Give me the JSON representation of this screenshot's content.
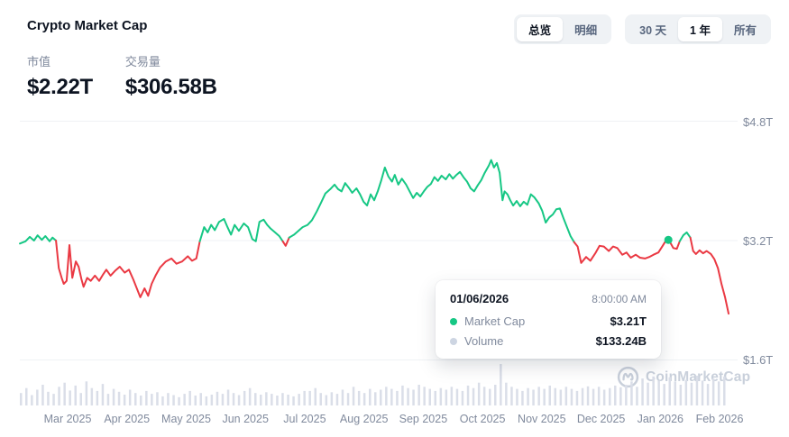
{
  "header": {
    "title": "Crypto Market Cap",
    "stats": [
      {
        "label": "市值",
        "value": "$2.22T"
      },
      {
        "label": "交易量",
        "value": "$306.58B"
      }
    ]
  },
  "toolbar": {
    "view_toggle": [
      {
        "label": "总览",
        "active": true
      },
      {
        "label": "明细",
        "active": false
      }
    ],
    "range_toggle": [
      {
        "label": "30 天",
        "active": false
      },
      {
        "label": "1 年",
        "active": true
      },
      {
        "label": "所有",
        "active": false
      }
    ]
  },
  "tooltip": {
    "date": "01/06/2026",
    "time": "8:00:00 AM",
    "rows": [
      {
        "label": "Market Cap",
        "value": "$3.21T",
        "dot_color": "#16c784"
      },
      {
        "label": "Volume",
        "value": "$133.24B",
        "dot_color": "#cdd5e2"
      }
    ]
  },
  "watermark": {
    "text": "CoinMarketCap"
  },
  "chart_data": {
    "type": "line",
    "series_name": "Market Cap (trillions USD)",
    "baseline": 3.16,
    "colors": {
      "up": "#16c784",
      "down": "#ea3943",
      "volume": "#dadee8",
      "grid": "#eff2f5"
    },
    "y_axis": {
      "ticks": [
        "$4.8T",
        "$3.2T",
        "$1.6T"
      ],
      "values": [
        4.8,
        3.2,
        1.6
      ]
    },
    "x_axis": {
      "labels": [
        "Mar 2025",
        "Apr 2025",
        "May 2025",
        "Jun 2025",
        "Jul 2025",
        "Aug 2025",
        "Sep 2025",
        "Oct 2025",
        "Nov 2025",
        "Dec 2025",
        "Jan 2026",
        "Feb 2026"
      ]
    },
    "hover_point": {
      "index": 170,
      "value_label": "$3.21T"
    },
    "points": [
      [
        0.0,
        3.16
      ],
      [
        0.008,
        3.19
      ],
      [
        0.014,
        3.25
      ],
      [
        0.02,
        3.2
      ],
      [
        0.025,
        3.27
      ],
      [
        0.031,
        3.21
      ],
      [
        0.036,
        3.26
      ],
      [
        0.042,
        3.19
      ],
      [
        0.046,
        3.24
      ],
      [
        0.051,
        3.2
      ],
      [
        0.055,
        2.83
      ],
      [
        0.059,
        2.7
      ],
      [
        0.062,
        2.62
      ],
      [
        0.066,
        2.66
      ],
      [
        0.07,
        3.14
      ],
      [
        0.074,
        2.7
      ],
      [
        0.079,
        2.92
      ],
      [
        0.083,
        2.85
      ],
      [
        0.087,
        2.68
      ],
      [
        0.09,
        2.58
      ],
      [
        0.095,
        2.7
      ],
      [
        0.1,
        2.66
      ],
      [
        0.106,
        2.73
      ],
      [
        0.112,
        2.66
      ],
      [
        0.117,
        2.74
      ],
      [
        0.122,
        2.81
      ],
      [
        0.128,
        2.73
      ],
      [
        0.135,
        2.8
      ],
      [
        0.141,
        2.85
      ],
      [
        0.148,
        2.77
      ],
      [
        0.154,
        2.81
      ],
      [
        0.16,
        2.68
      ],
      [
        0.165,
        2.56
      ],
      [
        0.17,
        2.44
      ],
      [
        0.176,
        2.56
      ],
      [
        0.181,
        2.46
      ],
      [
        0.186,
        2.62
      ],
      [
        0.192,
        2.74
      ],
      [
        0.198,
        2.84
      ],
      [
        0.206,
        2.92
      ],
      [
        0.214,
        2.96
      ],
      [
        0.221,
        2.89
      ],
      [
        0.229,
        2.92
      ],
      [
        0.237,
        2.99
      ],
      [
        0.243,
        2.93
      ],
      [
        0.249,
        2.96
      ],
      [
        0.254,
        3.19
      ],
      [
        0.26,
        3.38
      ],
      [
        0.265,
        3.31
      ],
      [
        0.27,
        3.41
      ],
      [
        0.275,
        3.34
      ],
      [
        0.281,
        3.45
      ],
      [
        0.288,
        3.49
      ],
      [
        0.293,
        3.38
      ],
      [
        0.298,
        3.28
      ],
      [
        0.303,
        3.41
      ],
      [
        0.309,
        3.33
      ],
      [
        0.316,
        3.43
      ],
      [
        0.322,
        3.38
      ],
      [
        0.328,
        3.22
      ],
      [
        0.333,
        3.19
      ],
      [
        0.338,
        3.45
      ],
      [
        0.344,
        3.48
      ],
      [
        0.349,
        3.41
      ],
      [
        0.354,
        3.36
      ],
      [
        0.36,
        3.31
      ],
      [
        0.366,
        3.26
      ],
      [
        0.371,
        3.19
      ],
      [
        0.375,
        3.13
      ],
      [
        0.38,
        3.24
      ],
      [
        0.387,
        3.28
      ],
      [
        0.393,
        3.33
      ],
      [
        0.399,
        3.38
      ],
      [
        0.406,
        3.41
      ],
      [
        0.412,
        3.47
      ],
      [
        0.419,
        3.59
      ],
      [
        0.425,
        3.71
      ],
      [
        0.431,
        3.83
      ],
      [
        0.438,
        3.89
      ],
      [
        0.444,
        3.95
      ],
      [
        0.449,
        3.89
      ],
      [
        0.454,
        3.86
      ],
      [
        0.459,
        3.97
      ],
      [
        0.464,
        3.91
      ],
      [
        0.469,
        3.84
      ],
      [
        0.475,
        3.9
      ],
      [
        0.48,
        3.82
      ],
      [
        0.485,
        3.72
      ],
      [
        0.49,
        3.67
      ],
      [
        0.495,
        3.82
      ],
      [
        0.5,
        3.74
      ],
      [
        0.505,
        3.86
      ],
      [
        0.51,
        4.01
      ],
      [
        0.515,
        4.18
      ],
      [
        0.52,
        4.06
      ],
      [
        0.525,
        3.99
      ],
      [
        0.529,
        4.08
      ],
      [
        0.534,
        3.95
      ],
      [
        0.539,
        4.03
      ],
      [
        0.545,
        3.95
      ],
      [
        0.55,
        3.86
      ],
      [
        0.555,
        3.77
      ],
      [
        0.56,
        3.84
      ],
      [
        0.565,
        3.79
      ],
      [
        0.57,
        3.86
      ],
      [
        0.575,
        3.92
      ],
      [
        0.58,
        3.96
      ],
      [
        0.585,
        4.05
      ],
      [
        0.59,
        4.0
      ],
      [
        0.595,
        4.07
      ],
      [
        0.601,
        4.02
      ],
      [
        0.606,
        4.09
      ],
      [
        0.611,
        4.03
      ],
      [
        0.616,
        4.08
      ],
      [
        0.621,
        4.12
      ],
      [
        0.626,
        4.05
      ],
      [
        0.631,
        3.99
      ],
      [
        0.636,
        3.9
      ],
      [
        0.641,
        3.86
      ],
      [
        0.646,
        3.94
      ],
      [
        0.651,
        4.01
      ],
      [
        0.656,
        4.11
      ],
      [
        0.662,
        4.21
      ],
      [
        0.665,
        4.28
      ],
      [
        0.669,
        4.18
      ],
      [
        0.673,
        4.24
      ],
      [
        0.677,
        4.11
      ],
      [
        0.681,
        3.74
      ],
      [
        0.684,
        3.86
      ],
      [
        0.688,
        3.82
      ],
      [
        0.692,
        3.74
      ],
      [
        0.696,
        3.67
      ],
      [
        0.701,
        3.73
      ],
      [
        0.706,
        3.66
      ],
      [
        0.711,
        3.72
      ],
      [
        0.716,
        3.68
      ],
      [
        0.721,
        3.82
      ],
      [
        0.726,
        3.78
      ],
      [
        0.732,
        3.7
      ],
      [
        0.737,
        3.6
      ],
      [
        0.742,
        3.44
      ],
      [
        0.747,
        3.51
      ],
      [
        0.752,
        3.55
      ],
      [
        0.757,
        3.62
      ],
      [
        0.762,
        3.63
      ],
      [
        0.767,
        3.5
      ],
      [
        0.772,
        3.38
      ],
      [
        0.777,
        3.26
      ],
      [
        0.782,
        3.18
      ],
      [
        0.787,
        3.12
      ],
      [
        0.792,
        2.9
      ],
      [
        0.799,
        2.98
      ],
      [
        0.805,
        2.93
      ],
      [
        0.812,
        3.03
      ],
      [
        0.818,
        3.13
      ],
      [
        0.824,
        3.12
      ],
      [
        0.831,
        3.06
      ],
      [
        0.837,
        3.12
      ],
      [
        0.843,
        3.1
      ],
      [
        0.85,
        3.01
      ],
      [
        0.856,
        3.04
      ],
      [
        0.862,
        2.97
      ],
      [
        0.869,
        3.01
      ],
      [
        0.875,
        2.97
      ],
      [
        0.882,
        2.96
      ],
      [
        0.888,
        2.98
      ],
      [
        0.894,
        3.01
      ],
      [
        0.901,
        3.04
      ],
      [
        0.907,
        3.13
      ],
      [
        0.911,
        3.19
      ],
      [
        0.915,
        3.21
      ],
      [
        0.918,
        3.17
      ],
      [
        0.922,
        3.1
      ],
      [
        0.927,
        3.09
      ],
      [
        0.931,
        3.19
      ],
      [
        0.936,
        3.27
      ],
      [
        0.941,
        3.31
      ],
      [
        0.946,
        3.24
      ],
      [
        0.95,
        3.06
      ],
      [
        0.954,
        3.02
      ],
      [
        0.959,
        3.07
      ],
      [
        0.964,
        3.03
      ],
      [
        0.969,
        3.06
      ],
      [
        0.975,
        3.02
      ],
      [
        0.98,
        2.95
      ],
      [
        0.985,
        2.83
      ],
      [
        0.99,
        2.62
      ],
      [
        0.995,
        2.44
      ],
      [
        1.0,
        2.22
      ]
    ],
    "volume_relative": [
      0.3,
      0.42,
      0.25,
      0.38,
      0.5,
      0.33,
      0.28,
      0.45,
      0.55,
      0.36,
      0.48,
      0.3,
      0.58,
      0.42,
      0.35,
      0.52,
      0.28,
      0.4,
      0.33,
      0.26,
      0.38,
      0.3,
      0.24,
      0.35,
      0.28,
      0.32,
      0.22,
      0.3,
      0.25,
      0.2,
      0.28,
      0.35,
      0.24,
      0.3,
      0.22,
      0.26,
      0.33,
      0.28,
      0.38,
      0.3,
      0.25,
      0.35,
      0.42,
      0.3,
      0.26,
      0.32,
      0.28,
      0.24,
      0.3,
      0.26,
      0.22,
      0.28,
      0.35,
      0.35,
      0.42,
      0.3,
      0.25,
      0.32,
      0.28,
      0.38,
      0.3,
      0.45,
      0.35,
      0.3,
      0.4,
      0.32,
      0.38,
      0.45,
      0.4,
      0.35,
      0.48,
      0.42,
      0.38,
      0.5,
      0.45,
      0.4,
      0.35,
      0.42,
      0.38,
      0.45,
      0.4,
      0.35,
      0.48,
      0.42,
      0.55,
      0.45,
      0.4,
      0.5,
      1.0,
      0.55,
      0.45,
      0.4,
      0.35,
      0.42,
      0.38,
      0.45,
      0.4,
      0.48,
      0.42,
      0.38,
      0.45,
      0.4,
      0.35,
      0.42,
      0.46,
      0.4,
      0.45,
      0.38,
      0.42,
      0.48,
      0.44,
      0.5,
      0.58,
      0.45,
      0.65,
      0.55,
      0.7,
      0.6,
      0.52,
      0.68,
      0.58,
      0.5,
      0.62,
      0.55,
      0.72,
      0.6,
      0.52,
      0.65,
      0.58,
      0.7
    ]
  }
}
